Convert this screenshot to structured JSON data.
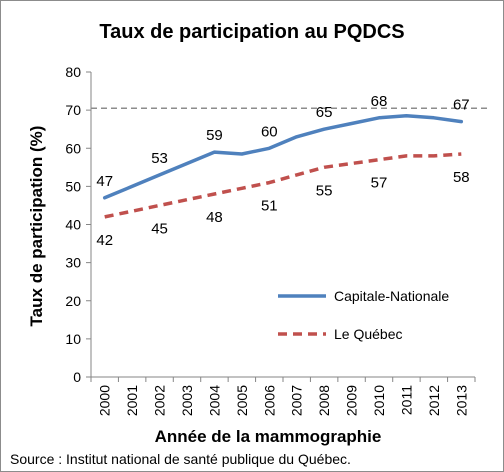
{
  "chart_data": {
    "type": "line",
    "title": "Taux de participation au PQDCS",
    "xlabel": "Année de la mammographie",
    "ylabel": "Taux de participation (%)",
    "ylim": [
      0,
      80
    ],
    "yticks": [
      "0",
      "10",
      "20",
      "30",
      "40",
      "50",
      "60",
      "70",
      "80"
    ],
    "x": [
      "2000",
      "2001",
      "2002",
      "2003",
      "2004",
      "2005",
      "2006",
      "2007",
      "2008",
      "2009",
      "2010",
      "2011",
      "2012",
      "2013"
    ],
    "series": [
      {
        "name": "Capitale-Nationale",
        "color": "#4f81bd",
        "style": "solid",
        "values": [
          47,
          50,
          53,
          56,
          59,
          58.5,
          60,
          63,
          65,
          66.5,
          68,
          68.5,
          68,
          67
        ],
        "labels": [
          {
            "x": "2000",
            "text": "47"
          },
          {
            "x": "2002",
            "text": "53"
          },
          {
            "x": "2004",
            "text": "59"
          },
          {
            "x": "2006",
            "text": "60"
          },
          {
            "x": "2008",
            "text": "65"
          },
          {
            "x": "2010",
            "text": "68"
          },
          {
            "x": "2013",
            "text": "67"
          }
        ]
      },
      {
        "name": "Le Québec",
        "color": "#c0504d",
        "style": "dashed",
        "values": [
          42,
          43.5,
          45,
          46.5,
          48,
          49.5,
          51,
          53,
          55,
          56,
          57,
          58,
          58,
          58.5
        ],
        "labels": [
          {
            "x": "2000",
            "text": "42"
          },
          {
            "x": "2002",
            "text": "45"
          },
          {
            "x": "2004",
            "text": "48"
          },
          {
            "x": "2006",
            "text": "51"
          },
          {
            "x": "2008",
            "text": "55"
          },
          {
            "x": "2010",
            "text": "57"
          },
          {
            "x": "2013",
            "text": "58"
          }
        ]
      }
    ],
    "reference_line": {
      "value": 70.5,
      "color": "#8c8c8c",
      "style": "dashed"
    },
    "grid": false,
    "legend": "right-bottom"
  },
  "source": "Source : Institut national de santé publique du Québec."
}
